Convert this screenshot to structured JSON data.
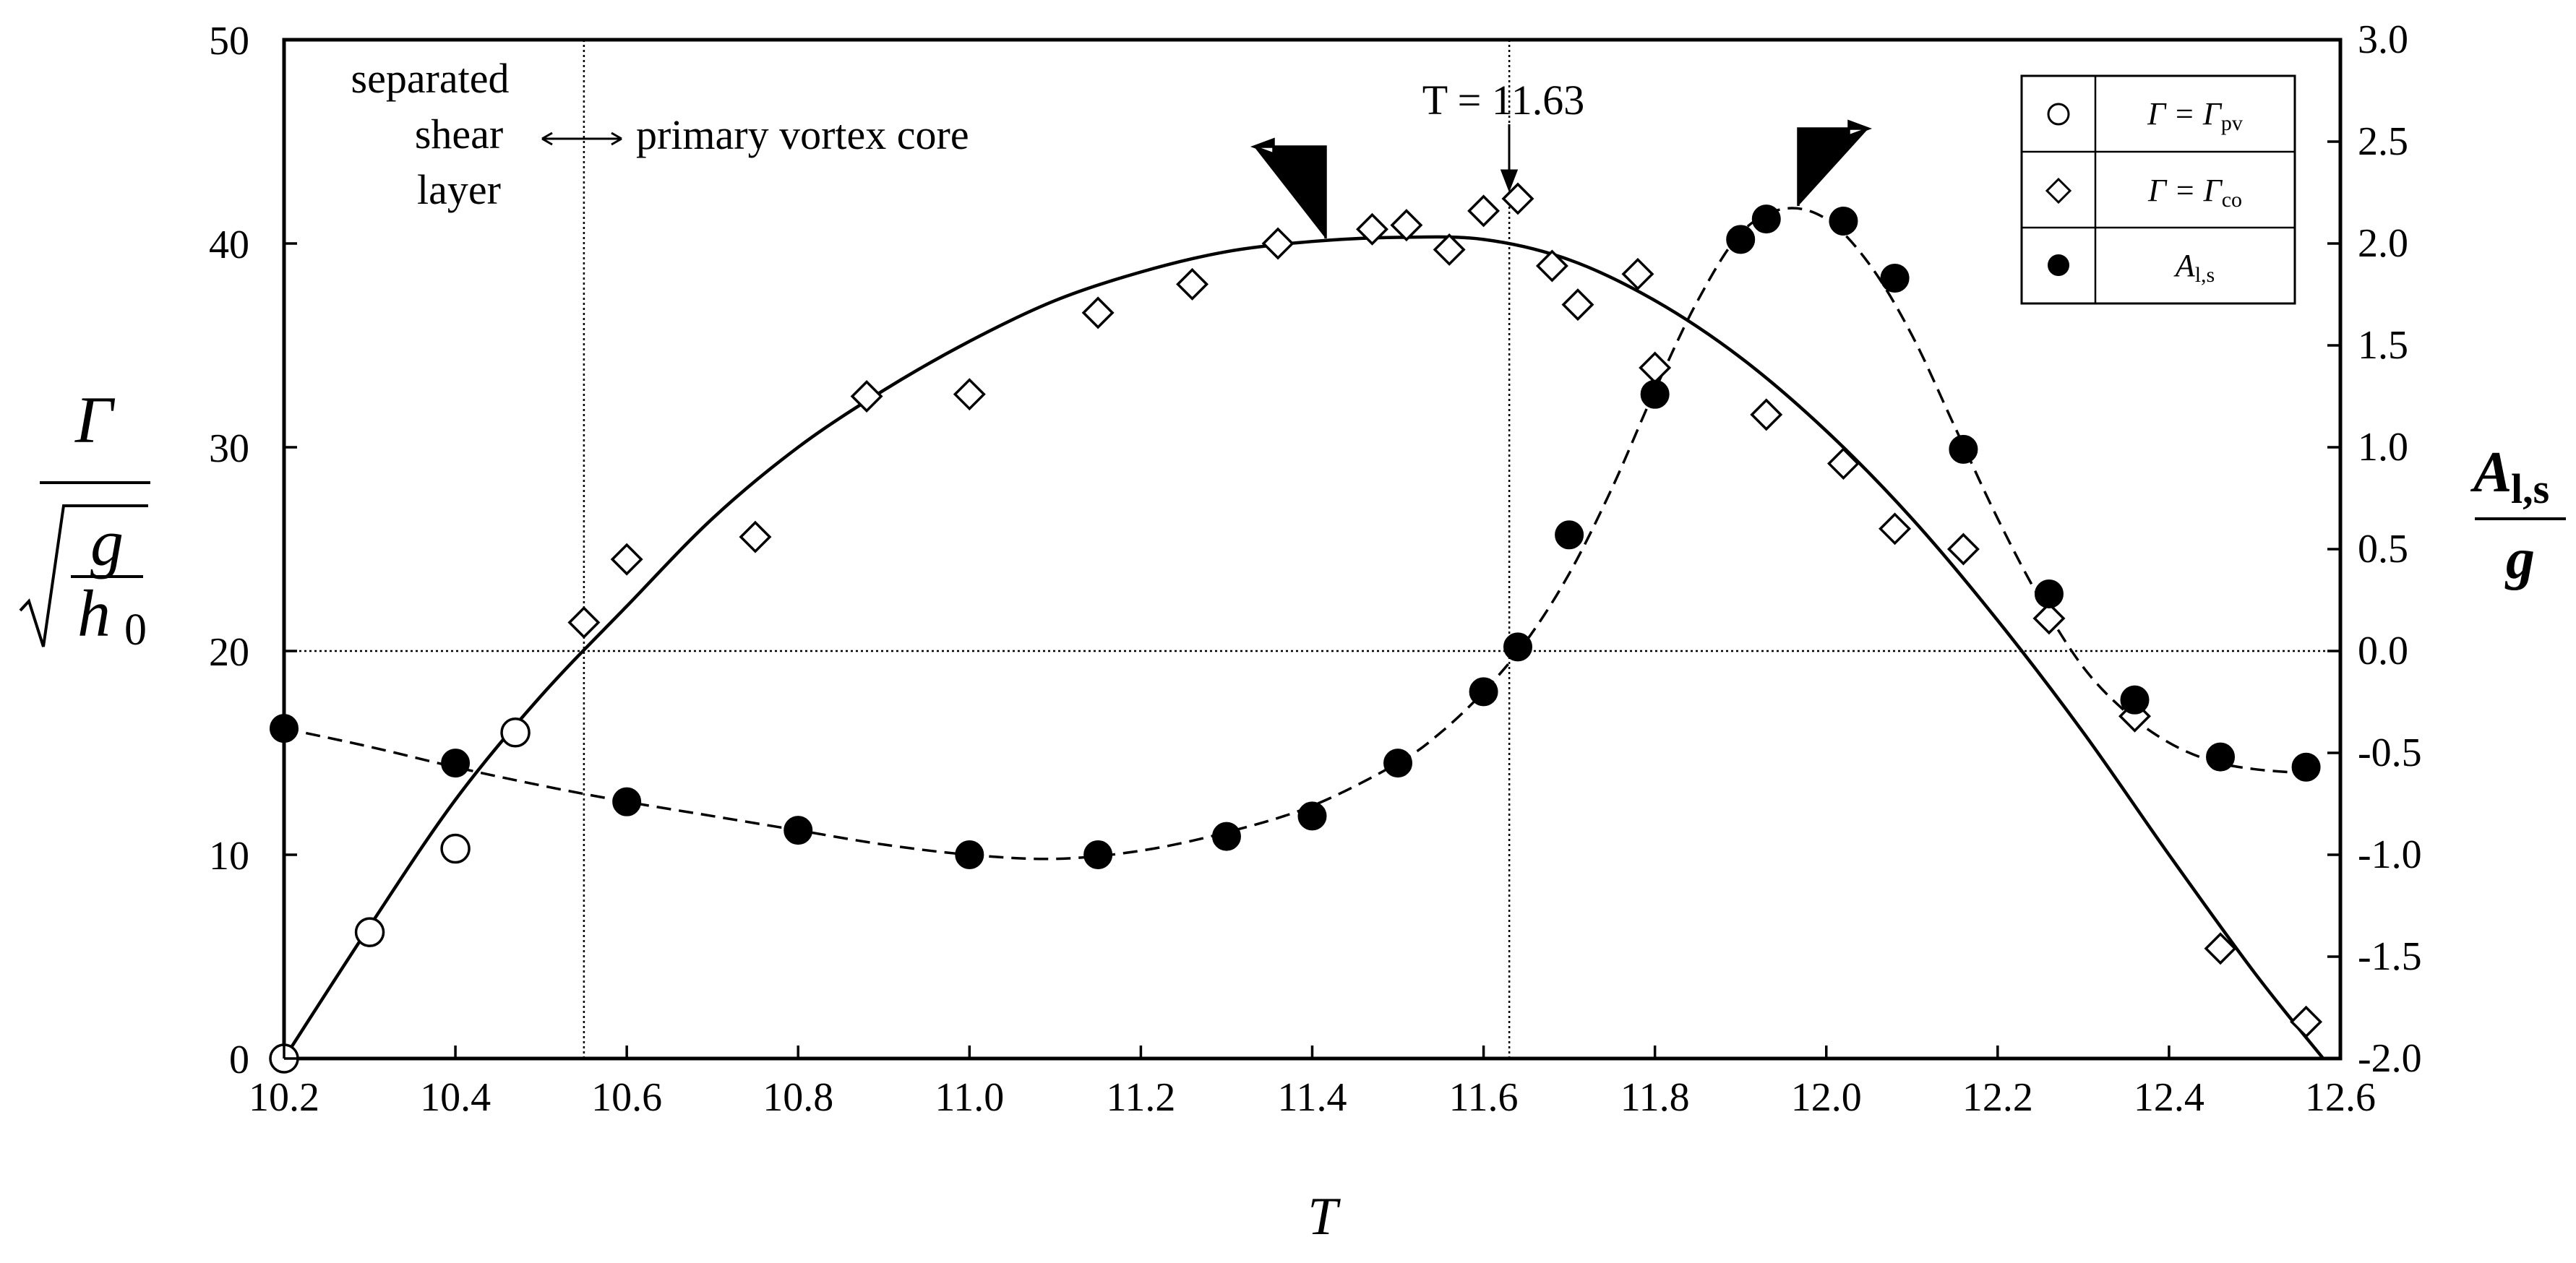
{
  "chart_data": {
    "type": "scatter",
    "xlabel": "T",
    "x_ticks": [
      "10.2",
      "10.4",
      "10.6",
      "10.8",
      "11.0",
      "11.2",
      "11.4",
      "11.6",
      "11.8",
      "12.0",
      "12.2",
      "12.4",
      "12.6"
    ],
    "xlim": [
      10.2,
      12.6
    ],
    "y_left": {
      "label_numerator": "Γ",
      "label_radicand_top": "g",
      "label_radicand_bottom": "h",
      "label_radicand_bottom_sub": "0",
      "ylim": [
        0,
        50
      ],
      "ticks": [
        "0",
        "10",
        "20",
        "30",
        "40",
        "50"
      ]
    },
    "y_right": {
      "label_numerator": "A",
      "label_numerator_sub": "l,s",
      "label_denominator": "g",
      "ylim": [
        -2.0,
        3.0
      ],
      "ticks": [
        "-2.0",
        "-1.5",
        "-1.0",
        "-0.5",
        "0.0",
        "0.5",
        "1.0",
        "1.5",
        "2.0",
        "2.5",
        "3.0"
      ]
    },
    "grid": false,
    "reference_lines": {
      "vertical_x": [
        10.55,
        11.63
      ],
      "horizontal_right_y": 0.0
    },
    "legend": {
      "placement": "top-right",
      "entries": [
        {
          "marker": "open-circle",
          "text": "Γ = Γ",
          "sub": "pv"
        },
        {
          "marker": "open-diamond",
          "text": "Γ = Γ",
          "sub": "co"
        },
        {
          "marker": "filled-circle",
          "text": "A",
          "sub": "l,s"
        }
      ]
    },
    "annotations": {
      "region_left": [
        "separated",
        "shear",
        "layer"
      ],
      "region_right": "primary vortex core",
      "t_marker": "T = 11.63"
    },
    "series": [
      {
        "marker": "open-circle",
        "axis": "left",
        "x": [
          10.2,
          10.3,
          10.4,
          10.47
        ],
        "y": [
          0.0,
          6.2,
          10.3,
          16.0
        ]
      },
      {
        "marker": "open-diamond",
        "axis": "left",
        "x": [
          10.55,
          10.6,
          10.75,
          10.88,
          11.0,
          11.15,
          11.26,
          11.36,
          11.47,
          11.51,
          11.56,
          11.6,
          11.64,
          11.68,
          11.71,
          11.78,
          11.8,
          11.93,
          12.02,
          12.08,
          12.16,
          12.26,
          12.36,
          12.46,
          12.56
        ],
        "y": [
          21.4,
          24.5,
          25.6,
          32.5,
          32.6,
          36.6,
          38.0,
          40.0,
          40.7,
          40.9,
          39.7,
          41.6,
          42.2,
          38.9,
          37.0,
          38.5,
          33.9,
          31.6,
          29.2,
          26.0,
          25.0,
          21.6,
          16.8,
          5.4,
          1.8
        ]
      },
      {
        "marker": "filled-circle",
        "axis": "right",
        "x": [
          10.2,
          10.4,
          10.6,
          10.8,
          11.0,
          11.15,
          11.3,
          11.4,
          11.5,
          11.6,
          11.64,
          11.7,
          11.8,
          11.9,
          11.93,
          12.02,
          12.08,
          12.16,
          12.26,
          12.36,
          12.46,
          12.56
        ],
        "y": [
          -0.38,
          -0.55,
          -0.74,
          -0.88,
          -1.0,
          -1.0,
          -0.91,
          -0.81,
          -0.55,
          -0.2,
          0.02,
          0.57,
          1.26,
          2.02,
          2.12,
          2.11,
          1.83,
          0.99,
          0.28,
          -0.24,
          -0.52,
          -0.57
        ]
      }
    ],
    "curves": [
      {
        "style": "solid",
        "axis": "left",
        "x": [
          10.2,
          10.3,
          10.4,
          10.5,
          10.6,
          10.7,
          10.8,
          10.9,
          11.0,
          11.1,
          11.2,
          11.3,
          11.4,
          11.5,
          11.6,
          11.7,
          11.8,
          11.9,
          12.0,
          12.1,
          12.2,
          12.3,
          12.4,
          12.5,
          12.58
        ],
        "y": [
          0.0,
          6.5,
          12.7,
          17.8,
          22.2,
          26.5,
          30.0,
          32.8,
          35.2,
          37.2,
          38.6,
          39.6,
          40.1,
          40.3,
          40.2,
          39.2,
          37.2,
          34.4,
          30.8,
          26.5,
          21.5,
          16.0,
          10.0,
          4.2,
          0.0
        ]
      },
      {
        "style": "dashed",
        "axis": "right",
        "x": [
          10.2,
          10.3,
          10.4,
          10.5,
          10.6,
          10.7,
          10.8,
          10.9,
          11.0,
          11.1,
          11.2,
          11.3,
          11.4,
          11.5,
          11.55,
          11.6,
          11.65,
          11.7,
          11.75,
          11.8,
          11.85,
          11.9,
          11.95,
          12.0,
          12.05,
          12.1,
          12.15,
          12.2,
          12.25,
          12.3,
          12.35,
          12.4,
          12.45,
          12.5,
          12.56
        ],
        "y": [
          -0.38,
          -0.47,
          -0.57,
          -0.66,
          -0.74,
          -0.81,
          -0.88,
          -0.95,
          -1.0,
          -1.02,
          -0.98,
          -0.89,
          -0.76,
          -0.55,
          -0.4,
          -0.2,
          0.05,
          0.38,
          0.8,
          1.28,
          1.72,
          2.05,
          2.17,
          2.12,
          1.9,
          1.55,
          1.1,
          0.65,
          0.25,
          -0.08,
          -0.3,
          -0.45,
          -0.54,
          -0.58,
          -0.6
        ]
      }
    ]
  }
}
